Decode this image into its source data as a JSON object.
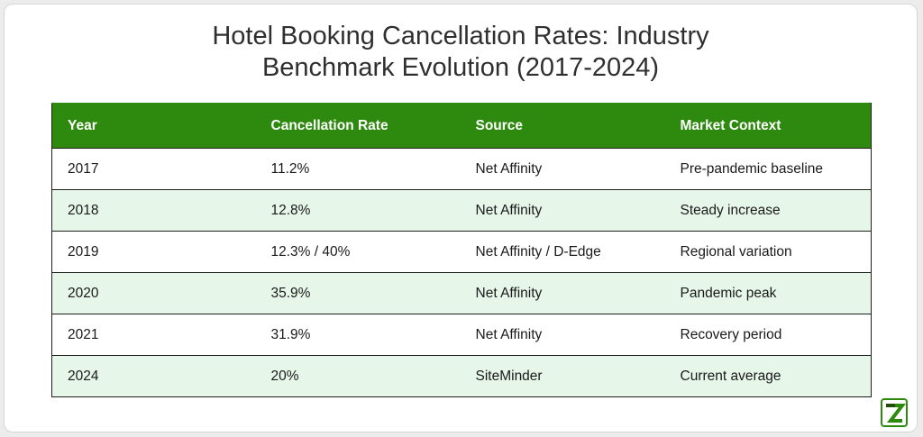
{
  "title_line1": "Hotel Booking Cancellation Rates: Industry",
  "title_line2": "Benchmark Evolution (2017-2024)",
  "columns": [
    "Year",
    "Cancellation Rate",
    "Source",
    "Market Context"
  ],
  "rows": [
    [
      "2017",
      "11.2%",
      "Net Affinity",
      "Pre-pandemic baseline"
    ],
    [
      "2018",
      "12.8%",
      "Net Affinity",
      "Steady increase"
    ],
    [
      "2019",
      "12.3% / 40%",
      "Net Affinity / D-Edge",
      "Regional variation"
    ],
    [
      "2020",
      "35.9%",
      "Net Affinity",
      "Pandemic peak"
    ],
    [
      "2021",
      "31.9%",
      "Net Affinity",
      "Recovery period"
    ],
    [
      "2024",
      "20%",
      "SiteMinder",
      "Current average"
    ]
  ],
  "colors": {
    "header_bg": "#2e8a0e",
    "alt_row_bg": "#e6f6e8",
    "logo_green": "#2e8a0e"
  },
  "logo": {
    "icon": "brand-logo-icon"
  }
}
